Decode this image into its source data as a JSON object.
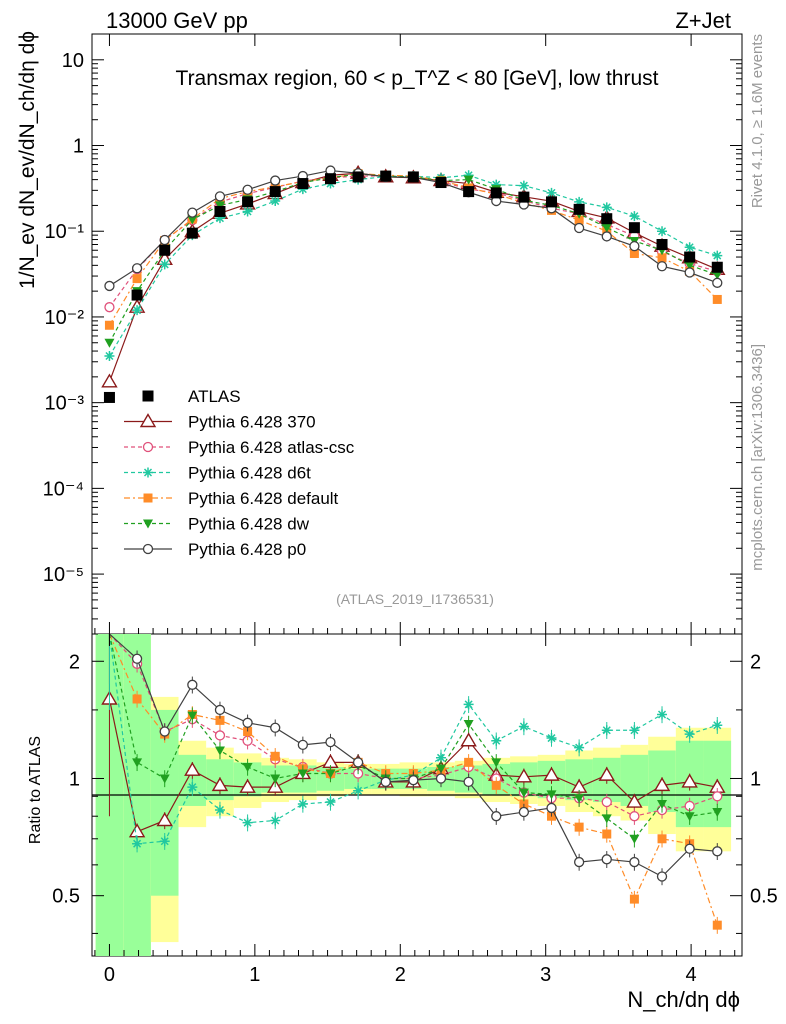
{
  "header": {
    "left": "13000 GeV pp",
    "right": "Z+Jet",
    "side_rivet": "Rivet 4.1.0, ≥ 1.6M events",
    "side_mcplots": "mcplots.cern.ch [arXiv:1306.3436]"
  },
  "chart_data": {
    "type": "scatter",
    "title": "Transmax region, 60 < p_T^Z < 80 [GeV], low thrust",
    "analysis_id": "(ATLAS_2019_I1736531)",
    "xlabel": "N_ch/dη dϕ",
    "ylabel_main": "1/N_ev dN_ev/dN_ch/dη dϕ",
    "ylabel_ratio": "Ratio to ATLAS",
    "xlim": [
      -0.12,
      4.35
    ],
    "ylim_main": [
      2e-06,
      20
    ],
    "ylim_ratio": [
      0.35,
      2.35
    ],
    "x_ticks": [
      "0",
      "1",
      "2",
      "3",
      "4"
    ],
    "y_ticks_main": [
      "10",
      "1",
      "10⁻¹",
      "10⁻²",
      "10⁻³",
      "10⁻⁴",
      "10⁻⁵"
    ],
    "y_ticks_ratio": [
      "2",
      "1",
      "0.5"
    ],
    "x": [
      0.0,
      0.19,
      0.38,
      0.57,
      0.76,
      0.95,
      1.14,
      1.33,
      1.52,
      1.71,
      1.9,
      2.09,
      2.28,
      2.47,
      2.66,
      2.85,
      3.04,
      3.23,
      3.42,
      3.61,
      3.8,
      3.99,
      4.18
    ],
    "data": {
      "name": "ATLAS",
      "values": [
        0.00115,
        0.018,
        0.06,
        0.095,
        0.17,
        0.22,
        0.29,
        0.36,
        0.41,
        0.43,
        0.44,
        0.43,
        0.37,
        0.29,
        0.28,
        0.25,
        0.22,
        0.18,
        0.14,
        0.11,
        0.07,
        0.05,
        0.038
      ]
    },
    "series": [
      {
        "name": "Pythia 6.428 370",
        "color": "#8b1a1a",
        "marker": "open-triangle",
        "dash": "",
        "values": [
          0.00175,
          0.013,
          0.047,
          0.099,
          0.162,
          0.208,
          0.275,
          0.37,
          0.45,
          0.475,
          0.432,
          0.42,
          0.39,
          0.36,
          0.285,
          0.252,
          0.224,
          0.17,
          0.143,
          0.096,
          0.067,
          0.049,
          0.036
        ]
      },
      {
        "name": "Pythia 6.428 atlas-csc",
        "color": "#e0507a",
        "marker": "open-circle",
        "dash": "4,3",
        "values": [
          0.013,
          0.036,
          0.079,
          0.135,
          0.219,
          0.275,
          0.325,
          0.385,
          0.42,
          0.44,
          0.44,
          0.43,
          0.38,
          0.31,
          0.28,
          0.228,
          0.185,
          0.16,
          0.12,
          0.088,
          0.058,
          0.042,
          0.034
        ]
      },
      {
        "name": "Pythia 6.428 d6t",
        "color": "#20c8a0",
        "marker": "star",
        "dash": "4,3",
        "values": [
          0.0035,
          0.012,
          0.041,
          0.09,
          0.142,
          0.17,
          0.225,
          0.31,
          0.36,
          0.4,
          0.435,
          0.44,
          0.42,
          0.45,
          0.35,
          0.34,
          0.28,
          0.22,
          0.19,
          0.15,
          0.1,
          0.065,
          0.052
        ]
      },
      {
        "name": "Pythia 6.428 default",
        "color": "#ff8c28",
        "marker": "filled-square",
        "dash": "6,3,2,3",
        "values": [
          0.008,
          0.028,
          0.078,
          0.139,
          0.24,
          0.29,
          0.33,
          0.38,
          0.42,
          0.47,
          0.45,
          0.44,
          0.39,
          0.32,
          0.27,
          0.215,
          0.175,
          0.135,
          0.1,
          0.055,
          0.049,
          0.034,
          0.016
        ]
      },
      {
        "name": "Pythia 6.428 dw",
        "color": "#20a020",
        "marker": "filled-triangle-down",
        "dash": "4,3",
        "values": [
          0.005,
          0.02,
          0.06,
          0.137,
          0.2,
          0.235,
          0.29,
          0.37,
          0.42,
          0.465,
          0.44,
          0.43,
          0.39,
          0.4,
          0.31,
          0.23,
          0.2,
          0.16,
          0.11,
          0.077,
          0.06,
          0.04,
          0.031
        ]
      },
      {
        "name": "Pythia 6.428 p0",
        "color": "#404040",
        "marker": "open-circle",
        "dash": "",
        "values": [
          0.023,
          0.037,
          0.079,
          0.165,
          0.255,
          0.305,
          0.39,
          0.44,
          0.51,
          0.475,
          0.43,
          0.425,
          0.37,
          0.285,
          0.225,
          0.205,
          0.185,
          0.109,
          0.087,
          0.067,
          0.039,
          0.033,
          0.025
        ]
      }
    ],
    "ratio_series": [
      {
        "name": "Pythia 6.428 370",
        "values": [
          1.6,
          0.73,
          0.78,
          1.05,
          0.96,
          0.95,
          0.95,
          1.03,
          1.1,
          1.1,
          0.98,
          0.98,
          1.06,
          1.25,
          1.02,
          1.01,
          1.02,
          0.95,
          1.02,
          0.87,
          0.96,
          0.98,
          0.95
        ]
      },
      {
        "name": "Pythia 6.428 atlas-csc",
        "values": [
          3.5,
          1.97,
          1.32,
          1.42,
          1.29,
          1.25,
          1.12,
          1.07,
          1.03,
          1.03,
          1.0,
          1.0,
          1.02,
          1.07,
          1.0,
          0.92,
          0.89,
          0.89,
          0.87,
          0.8,
          0.83,
          0.85,
          0.9
        ]
      },
      {
        "name": "Pythia 6.428 d6t",
        "values": [
          3.0,
          0.68,
          0.69,
          0.95,
          0.83,
          0.77,
          0.78,
          0.86,
          0.87,
          0.93,
          0.99,
          1.02,
          1.13,
          1.55,
          1.25,
          1.36,
          1.27,
          1.2,
          1.33,
          1.33,
          1.46,
          1.3,
          1.37
        ]
      },
      {
        "name": "Pythia 6.428 default",
        "values": [
          7.0,
          1.6,
          1.3,
          1.46,
          1.41,
          1.32,
          1.14,
          1.06,
          1.03,
          1.1,
          1.03,
          1.03,
          1.05,
          1.1,
          0.96,
          0.86,
          0.8,
          0.75,
          0.72,
          0.49,
          0.7,
          0.68,
          0.42
        ]
      },
      {
        "name": "Pythia 6.428 dw",
        "values": [
          4.4,
          1.1,
          1.0,
          1.45,
          1.18,
          1.07,
          1.0,
          1.03,
          1.03,
          1.08,
          1.0,
          1.0,
          1.06,
          1.38,
          1.1,
          0.92,
          0.91,
          0.89,
          0.79,
          0.7,
          0.86,
          0.8,
          0.82
        ]
      },
      {
        "name": "Pythia 6.428 p0",
        "values": [
          20.0,
          2.03,
          1.32,
          1.74,
          1.5,
          1.39,
          1.35,
          1.22,
          1.24,
          1.1,
          0.98,
          0.99,
          1.0,
          0.98,
          0.8,
          0.82,
          0.84,
          0.61,
          0.62,
          0.61,
          0.56,
          0.66,
          0.65
        ]
      }
    ],
    "uncertainty_band_inner": [
      3.0,
      1.5,
      0.5,
      0.15,
      0.12,
      0.1,
      0.08,
      0.08,
      0.07,
      0.06,
      0.06,
      0.06,
      0.07,
      0.08,
      0.09,
      0.1,
      0.11,
      0.12,
      0.13,
      0.15,
      0.18,
      0.25,
      0.25
    ],
    "uncertainty_band_outer": [
      3.0,
      1.5,
      0.62,
      0.25,
      0.2,
      0.16,
      0.13,
      0.12,
      0.1,
      0.09,
      0.09,
      0.1,
      0.1,
      0.11,
      0.13,
      0.14,
      0.15,
      0.18,
      0.2,
      0.22,
      0.28,
      0.35,
      0.35
    ]
  }
}
